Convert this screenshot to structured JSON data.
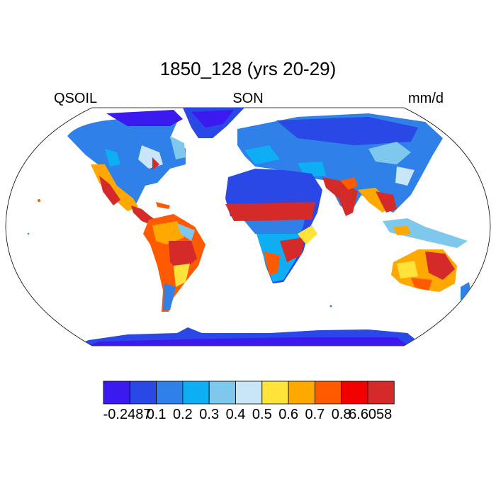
{
  "title": "1850_128 (yrs 20-29)",
  "variable": "QSOIL",
  "season": "SON",
  "units": "mm/d",
  "colorbar": {
    "colors": [
      "#3a1aef",
      "#2a48e6",
      "#2f80e8",
      "#0eaef4",
      "#7ec8ee",
      "#c8e6f8",
      "#ffe23a",
      "#ffa800",
      "#ff5a00",
      "#f20000",
      "#d42a2a"
    ],
    "tick_labels": [
      "-0.2487",
      "0.1",
      "0.2",
      "0.3",
      "0.4",
      "0.5",
      "0.6",
      "0.7",
      "0.8",
      "6.6058"
    ]
  }
}
